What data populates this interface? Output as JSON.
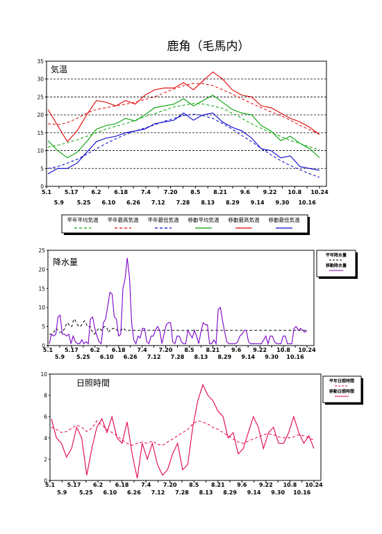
{
  "title": "鹿角（毛馬内）",
  "colors": {
    "green": "#00a000",
    "red": "#e00000",
    "blue": "#0000cc",
    "purple": "#7a00c8",
    "crimson": "#e0004a",
    "grid": "#000000"
  },
  "x_ticks_top": [
    "5.1",
    "5.17",
    "6.2",
    "6.18",
    "7.4",
    "7.20",
    "8.5",
    "8.21",
    "9.6",
    "9.22",
    "10.8",
    "10.24"
  ],
  "x_ticks_bottom": [
    "5.9",
    "5.25",
    "6.10",
    "6.26",
    "7.12",
    "7.28",
    "8.13",
    "8.29",
    "9.14",
    "9.30",
    "10.16"
  ],
  "chart_data": [
    {
      "type": "line",
      "title": "気温",
      "ylim": [
        0,
        35
      ],
      "yticks": [
        0,
        5,
        10,
        15,
        20,
        25,
        30,
        35
      ],
      "grid": true,
      "legend_position": "bottom",
      "x_days": "May 1 – Oct 31",
      "series": [
        {
          "name": "平年平均気温",
          "style": "dashed",
          "color": "green",
          "values": [
            11.0,
            11.5,
            12.2,
            13.0,
            14.0,
            15.0,
            16.0,
            16.8,
            17.5,
            18.5,
            19.5,
            20.3,
            21.3,
            22.2,
            22.7,
            23.2,
            23.0,
            22.5,
            21.8,
            20.5,
            19.0,
            17.5,
            16.2,
            15.0,
            14.0,
            12.8,
            12.0,
            11.0,
            10.2
          ]
        },
        {
          "name": "平年最高気温",
          "style": "dashed",
          "color": "red",
          "values": [
            17.5,
            17.2,
            17.8,
            19.0,
            20.5,
            21.5,
            22.0,
            22.5,
            23.0,
            23.5,
            24.3,
            25.0,
            26.2,
            27.2,
            28.2,
            28.8,
            28.7,
            28.2,
            27.0,
            25.8,
            24.5,
            23.2,
            22.0,
            20.8,
            19.8,
            18.5,
            17.0,
            15.8,
            14.5
          ]
        },
        {
          "name": "平年最低気温",
          "style": "dashed",
          "color": "blue",
          "values": [
            5.0,
            5.5,
            6.5,
            7.5,
            9.0,
            10.5,
            12.0,
            13.3,
            14.5,
            15.5,
            16.3,
            17.2,
            18.2,
            19.0,
            19.8,
            20.2,
            19.8,
            19.0,
            17.6,
            16.0,
            14.2,
            12.5,
            10.6,
            8.8,
            7.2,
            5.8,
            4.6,
            3.5,
            2.5
          ]
        },
        {
          "name": "移動平均気温",
          "style": "solid",
          "color": "green",
          "values": [
            12.8,
            10.0,
            8.0,
            9.5,
            12.5,
            16.0,
            17.0,
            17.5,
            19.0,
            18.3,
            20.0,
            22.0,
            22.5,
            23.0,
            24.5,
            22.5,
            24.0,
            25.5,
            23.5,
            21.5,
            20.5,
            20.0,
            17.0,
            15.5,
            12.8,
            14.0,
            12.0,
            10.5,
            8.0
          ]
        },
        {
          "name": "移動最高気温",
          "style": "solid",
          "color": "red",
          "values": [
            21.5,
            17.0,
            12.5,
            15.5,
            20.0,
            24.0,
            23.5,
            22.5,
            24.0,
            23.0,
            25.5,
            27.0,
            27.5,
            27.5,
            29.0,
            27.0,
            29.5,
            32.0,
            30.0,
            27.0,
            25.5,
            25.0,
            22.5,
            22.0,
            20.5,
            19.0,
            18.0,
            16.5,
            14.5
          ]
        },
        {
          "name": "移動最低気温",
          "style": "solid",
          "color": "blue",
          "values": [
            3.5,
            5.0,
            5.0,
            6.5,
            9.5,
            12.5,
            13.5,
            14.0,
            15.0,
            15.5,
            16.0,
            17.5,
            18.0,
            18.5,
            20.5,
            18.5,
            20.0,
            20.5,
            18.0,
            16.5,
            15.5,
            13.5,
            10.5,
            10.0,
            8.0,
            8.5,
            5.5,
            5.0,
            4.5
          ]
        }
      ],
      "y_axis_title": "気温"
    },
    {
      "type": "line",
      "title": "降水量",
      "ylim": [
        0,
        25
      ],
      "yticks": [
        0,
        5,
        10,
        15,
        20,
        25
      ],
      "grid": false,
      "legend_position": "right",
      "series": [
        {
          "name": "平年降水量",
          "style": "dashed",
          "color": "black",
          "values": [
            3.0,
            3.0,
            3.0,
            3.5,
            4.0,
            4.5,
            4.0,
            3.5,
            3.5,
            3.5,
            4.0,
            4.5,
            5.5,
            6.0,
            5.5,
            5.0,
            5.0,
            6.5,
            7.0,
            6.0,
            5.5,
            5.0,
            5.0,
            5.5,
            6.0,
            6.5,
            6.0,
            5.0,
            5.0,
            5.0,
            4.0,
            3.5,
            3.0,
            3.5,
            4.0,
            4.5,
            4.5,
            4.0,
            4.5,
            5.0,
            5.0,
            4.5,
            3.5,
            4.0,
            4.0,
            4.5,
            4.5,
            4.5,
            4.0,
            4.0,
            4.0,
            4.0,
            4.5,
            4.5,
            4.0,
            4.0,
            4.0,
            4.0,
            4.0,
            4.0,
            4.0,
            4.0,
            4.0,
            4.0,
            4.0,
            4.0,
            4.0,
            4.0,
            4.0,
            4.0,
            4.0,
            4.0,
            4.0,
            4.0,
            4.0,
            4.0,
            4.0,
            4.0,
            4.0,
            4.0,
            4.0,
            4.0,
            4.0,
            4.0,
            4.0,
            4.0,
            4.0,
            4.0,
            4.0,
            4.0,
            4.0,
            4.0,
            4.0,
            4.0,
            4.0,
            4.0,
            4.0,
            4.0,
            4.0,
            4.0,
            4.0,
            4.0,
            4.0,
            4.0,
            4.0,
            4.0,
            4.0,
            4.0,
            4.0,
            4.0,
            4.0,
            4.0,
            4.0,
            4.0,
            4.0,
            4.0,
            4.0,
            4.0,
            4.0,
            4.0,
            4.0,
            4.0,
            4.0,
            4.0,
            4.0,
            4.0,
            4.0,
            4.0,
            4.0,
            4.0,
            4.0,
            4.0,
            4.0,
            4.0,
            4.0,
            4.0,
            4.0,
            4.0,
            4.0,
            4.0,
            4.0,
            4.0,
            4.0,
            4.0,
            4.0,
            4.0,
            4.0,
            4.0,
            4.0,
            4.0,
            4.0,
            4.0,
            4.0,
            4.0,
            4.0,
            4.0,
            4.0,
            4.0,
            4.0,
            4.0,
            4.0,
            4.0,
            4.0,
            4.0,
            4.0,
            4.0,
            4.0,
            4.0,
            4.0,
            4.0,
            4.0,
            4.0,
            4.0,
            4.0,
            4.0,
            4.0,
            4.0,
            4.0,
            4.0,
            4.0,
            4.0,
            4.0,
            4.0,
            4.0
          ]
        },
        {
          "name": "移動降水量",
          "style": "solid",
          "color": "purple",
          "values": [
            0.5,
            3.0,
            2.5,
            3.0,
            7.5,
            8.0,
            3.0,
            3.0,
            2.5,
            3.0,
            0.5,
            2.5,
            1.0,
            0.5,
            0.5,
            1.5,
            0.5,
            1.0,
            0.5,
            7.0,
            7.5,
            4.5,
            2.5,
            1.0,
            0.5,
            6.0,
            7.0,
            10.5,
            14.0,
            13.5,
            7.5,
            7.0,
            2.5,
            3.0,
            15.0,
            17.5,
            23.0,
            18.0,
            6.0,
            1.5,
            0.5,
            2.5,
            2.0,
            4.5,
            4.5,
            1.0,
            0.5,
            2.5,
            2.5,
            4.0,
            5.0,
            4.0,
            0.5,
            3.0,
            5.5,
            6.0,
            6.0,
            1.0,
            0.5,
            2.5,
            2.5,
            1.0,
            0.5,
            0.5,
            4.0,
            3.0,
            2.0,
            4.0,
            2.5,
            0.5,
            3.5,
            6.0,
            5.5,
            5.5,
            0.5,
            0.5,
            1.5,
            0.5,
            9.5,
            10.0,
            6.5,
            3.5,
            1.0,
            0.5,
            0.5,
            0.5,
            0.5,
            1.0,
            2.5,
            3.0,
            4.0,
            4.0,
            1.0,
            0.5,
            0.5,
            0.5,
            0.5,
            0.5,
            0.5,
            1.5,
            2.5,
            0.5,
            2.5,
            2.5,
            1.0,
            0.5,
            0.5,
            0.5,
            2.5,
            2.5,
            0.5,
            0.5,
            0.5,
            4.5,
            5.0,
            4.0,
            4.5,
            4.0,
            3.5,
            4.0
          ]
        }
      ]
    },
    {
      "type": "line",
      "title": "日照時間",
      "ylim": [
        0,
        10
      ],
      "yticks": [
        0,
        2,
        4,
        6,
        8,
        10
      ],
      "grid": false,
      "legend_position": "right",
      "series": [
        {
          "name": "平年日照時間",
          "style": "dashed",
          "color": "crimson",
          "values": [
            5.0,
            4.8,
            4.5,
            4.6,
            4.9,
            5.2,
            5.0,
            4.6,
            4.9,
            5.6,
            5.2,
            4.8,
            4.5,
            4.2,
            3.8,
            3.5,
            3.3,
            3.5,
            3.6,
            3.5,
            3.7,
            3.4,
            3.3,
            3.6,
            3.9,
            4.2,
            4.5,
            4.8,
            5.3,
            5.6,
            5.5,
            5.3,
            5.0,
            4.8,
            4.5,
            4.2,
            3.9,
            3.6,
            3.5,
            3.7,
            3.9,
            4.1,
            4.3,
            4.4,
            4.3,
            4.1,
            4.0,
            4.0,
            4.1,
            4.3,
            4.2,
            4.0,
            3.8
          ]
        },
        {
          "name": "移動日照時間",
          "style": "solid",
          "color": "crimson",
          "values": [
            5.8,
            4.0,
            3.5,
            2.2,
            3.0,
            5.0,
            4.0,
            0.5,
            3.0,
            5.0,
            5.8,
            4.5,
            6.0,
            4.0,
            3.5,
            5.5,
            2.5,
            0.2,
            3.5,
            2.0,
            3.5,
            1.5,
            0.5,
            1.0,
            2.5,
            3.5,
            1.0,
            1.5,
            5.0,
            7.5,
            9.0,
            8.0,
            7.5,
            6.5,
            6.0,
            4.0,
            4.5,
            2.5,
            3.0,
            4.5,
            6.0,
            5.0,
            3.0,
            4.5,
            5.0,
            3.5,
            3.5,
            4.5,
            6.0,
            4.5,
            3.5,
            4.2,
            3.0
          ]
        }
      ]
    }
  ],
  "legend1": [
    {
      "label": "平年平均気温",
      "style": "dashed",
      "color": "green"
    },
    {
      "label": "平年最高気温",
      "style": "dashed",
      "color": "red"
    },
    {
      "label": "平年最低気温",
      "style": "dashed",
      "color": "blue"
    },
    {
      "label": "移動平均気温",
      "style": "solid",
      "color": "green"
    },
    {
      "label": "移動最高気温",
      "style": "solid",
      "color": "red"
    },
    {
      "label": "移動最低気温",
      "style": "solid",
      "color": "blue"
    }
  ],
  "legend2": [
    {
      "label": "平年降水量",
      "style": "dashed",
      "color": "black"
    },
    {
      "label": "移動降水量",
      "style": "solid",
      "color": "purple"
    }
  ],
  "legend3": [
    {
      "label": "平年日照時間",
      "style": "dashed",
      "color": "crimson"
    },
    {
      "label": "移動日照時間",
      "style": "solid",
      "color": "crimson"
    }
  ]
}
